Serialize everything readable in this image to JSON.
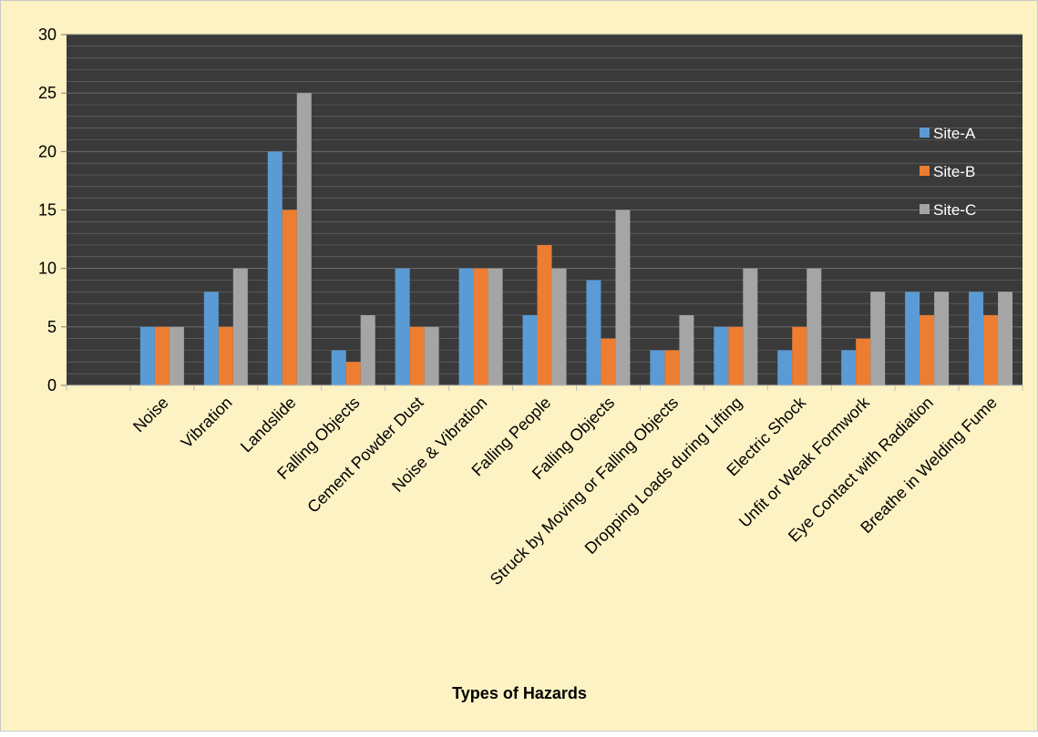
{
  "chart_data": {
    "type": "bar",
    "title": "",
    "xlabel": "Types of Hazards",
    "ylabel": "",
    "ylim": [
      0,
      30
    ],
    "yticks": [
      0,
      5,
      10,
      15,
      20,
      25,
      30
    ],
    "grid": true,
    "legend_position": "right",
    "categories": [
      "",
      "Noise",
      "Vibration",
      "Landslide",
      "Falling Objects",
      "Cement Powder Dust",
      "Noise & Vibration",
      "Falling People",
      "Falling Objects",
      "Struck by Moving or Falling Objects",
      "Dropping Loads during Lifting",
      "Electric Shock",
      "Unfit or Weak Formwork",
      "Eye Contact with Radiation",
      "Breathe in Welding Fume"
    ],
    "series": [
      {
        "name": "Site-A",
        "color": "#5b9bd5",
        "values": [
          null,
          5,
          8,
          20,
          3,
          10,
          10,
          6,
          9,
          3,
          5,
          3,
          3,
          8,
          8
        ]
      },
      {
        "name": "Site-B",
        "color": "#ed7d31",
        "values": [
          null,
          5,
          5,
          15,
          2,
          5,
          10,
          12,
          4,
          3,
          5,
          5,
          4,
          6,
          6
        ]
      },
      {
        "name": "Site-C",
        "color": "#a5a5a5",
        "values": [
          null,
          5,
          10,
          25,
          6,
          5,
          10,
          10,
          15,
          6,
          10,
          10,
          8,
          8,
          8
        ]
      }
    ]
  },
  "colors": {
    "page_background": "#fdf2c3",
    "plot_background": "#3a3a3a",
    "gridline": "#6d6d6d",
    "axis": "#bdbdbd"
  }
}
